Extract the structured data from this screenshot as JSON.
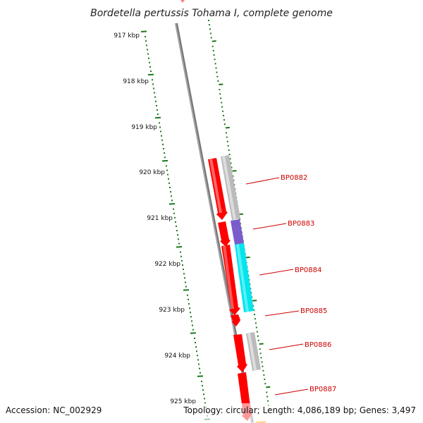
{
  "header": {
    "title": "Bordetella pertussis Tohama I, complete genome"
  },
  "ticks": [
    {
      "label": "917 kbp"
    },
    {
      "label": "918 kbp"
    },
    {
      "label": "919 kbp"
    },
    {
      "label": "920 kbp"
    },
    {
      "label": "921 kbp"
    },
    {
      "label": "922 kbp"
    },
    {
      "label": "923 kbp"
    },
    {
      "label": "924 kbp"
    },
    {
      "label": "925 kbp"
    }
  ],
  "genes": [
    {
      "label": "BP0882",
      "color": "#bbbbbb"
    },
    {
      "label": "BP0883",
      "color": "#7a5ccc"
    },
    {
      "label": "BP0884",
      "color": "#00e5ee"
    },
    {
      "label": "BP0885",
      "color": ""
    },
    {
      "label": "BP0886",
      "color": "#bbbbbb"
    },
    {
      "label": "BP0887",
      "color": ""
    }
  ],
  "colors": {
    "cds_forward": "#ff0000",
    "label_text": "#cc0000",
    "tick_marks": "#1a7a1a",
    "backbone": "#888888"
  },
  "footer": {
    "accession": "Accession: NC_002929",
    "summary": "Topology: circular; Length: 4,086,189 bp; Genes: 3,497"
  }
}
